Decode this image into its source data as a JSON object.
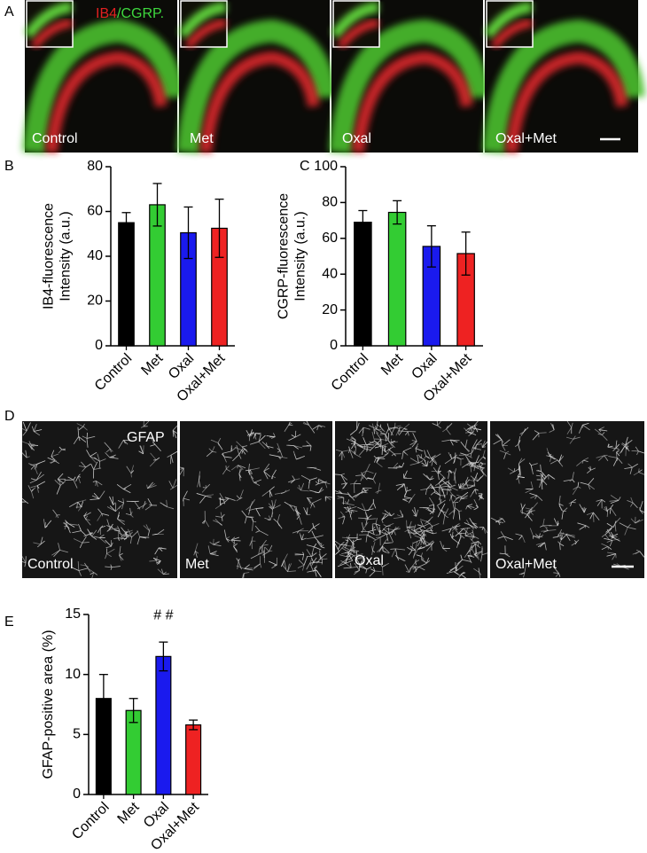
{
  "panels": [
    {
      "letter": "A",
      "labels": [
        "Control",
        "Met",
        "Oxal",
        "Oxal+Met"
      ],
      "stain": [
        "IB4",
        "/CGRP."
      ]
    },
    {
      "letter": "D",
      "labels": [
        "Control",
        "Met",
        "Oxal",
        "Oxal+Met"
      ],
      "stain": [
        "GFAP"
      ]
    }
  ],
  "chart_data": [
    {
      "type": "bar",
      "panel_label": "B",
      "ylabel": [
        "IB4-fluorescence",
        "Intensity (a.u.)"
      ],
      "categories": [
        "Control",
        "Met",
        "Oxal",
        "Oxal+Met"
      ],
      "values": [
        55,
        63,
        50.5,
        52.5
      ],
      "errors": [
        4.5,
        9.5,
        11.5,
        13
      ],
      "colors": [
        "#000000",
        "#33cc33",
        "#1a1aee",
        "#ee2222"
      ],
      "ylim": [
        0,
        80
      ],
      "yticks": [
        0,
        20,
        40,
        60,
        80
      ]
    },
    {
      "type": "bar",
      "panel_label": "C",
      "ylabel": [
        "CGRP-fluorescence",
        "Intensity (a.u.)"
      ],
      "categories": [
        "Control",
        "Met",
        "Oxal",
        "Oxal+Met"
      ],
      "values": [
        69,
        74.5,
        55.5,
        51.5
      ],
      "errors": [
        6.5,
        6.5,
        11.5,
        12
      ],
      "colors": [
        "#000000",
        "#33cc33",
        "#1a1aee",
        "#ee2222"
      ],
      "ylim": [
        0,
        100
      ],
      "yticks": [
        0,
        20,
        40,
        60,
        80,
        100
      ]
    },
    {
      "type": "bar",
      "panel_label": "E",
      "ylabel": [
        "GFAP-positive area (%)"
      ],
      "categories": [
        "Control",
        "Met",
        "Oxal",
        "Oxal+Met"
      ],
      "values": [
        8,
        7,
        11.5,
        5.8
      ],
      "errors": [
        2,
        1,
        1.2,
        0.4
      ],
      "annotations": [
        null,
        null,
        "# #",
        null
      ],
      "colors": [
        "#000000",
        "#33cc33",
        "#1a1aee",
        "#ee2222"
      ],
      "ylim": [
        0,
        15
      ],
      "yticks": [
        0,
        5,
        10,
        15
      ]
    }
  ]
}
